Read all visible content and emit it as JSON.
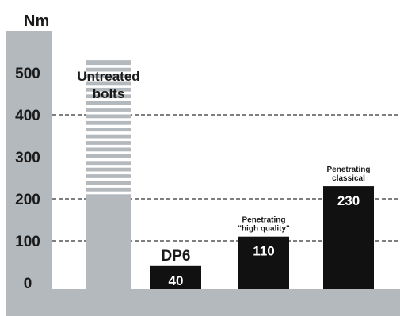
{
  "chart_data": {
    "type": "bar",
    "unit_label": "Nm",
    "ylim": [
      0,
      550
    ],
    "yticks": [
      0,
      100,
      200,
      300,
      400,
      500
    ],
    "grid": "dashed at 100, 200, 400",
    "categories": [
      {
        "name": "Untreated bolts",
        "lines": [
          "Untreated",
          "bolts"
        ],
        "value": 530,
        "show_value": false,
        "style": "untreated",
        "label_color": "#1a1a1a"
      },
      {
        "name": "DP6",
        "lines": [
          "DP6"
        ],
        "value": 40,
        "show_value": true,
        "style": "solid",
        "label_color": "#f5a623"
      },
      {
        "name": "Penetrating \"high quality\"",
        "lines": [
          "Penetrating",
          "\"high quality\""
        ],
        "value": 110,
        "show_value": true,
        "style": "solid",
        "label_color": "#1a1a1a"
      },
      {
        "name": "Penetrating classical",
        "lines": [
          "Penetrating",
          "classical"
        ],
        "value": 230,
        "show_value": true,
        "style": "solid",
        "label_color": "#1a1a1a"
      }
    ],
    "colors": {
      "axis_band": "#b4b9be",
      "untreated_bar": "#b4b9be",
      "stripe": "#ffffff",
      "solid_bar": "#111111",
      "accent": "#f5a623"
    }
  }
}
